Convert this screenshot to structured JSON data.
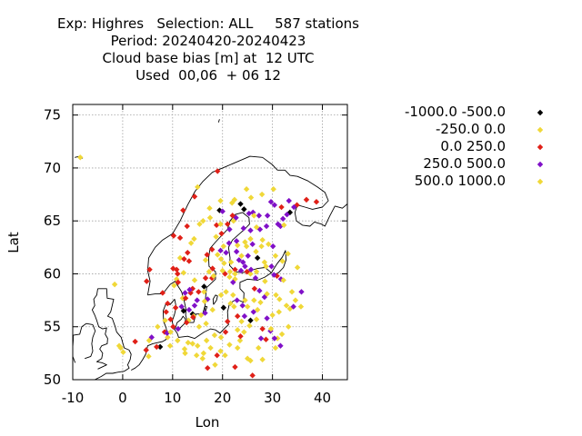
{
  "title_lines": [
    "Exp: Highres   Selection: ALL     587 stations",
    "Period: 20240420-20240423",
    "Cloud base bias [m] at  12 UTC",
    "Used  00,06  + 06 12"
  ],
  "chart_data": {
    "type": "scatter",
    "xlabel": "Lon",
    "ylabel": "Lat",
    "xlim": [
      -10,
      45
    ],
    "ylim": [
      50,
      76
    ],
    "xticks": [
      "-10",
      "0",
      "10",
      "20",
      "30",
      "40"
    ],
    "yticks": [
      "50",
      "55",
      "60",
      "65",
      "70",
      "75"
    ],
    "grid": true,
    "legend_position": "right",
    "series": [
      {
        "name": "-1000.0 -500.0",
        "color": "#000000",
        "points": [
          [
            12.2,
            56.5
          ],
          [
            19.4,
            66.0
          ],
          [
            20.2,
            56.8
          ],
          [
            23.6,
            66.6
          ],
          [
            24.3,
            66.1
          ],
          [
            25.6,
            55.6
          ],
          [
            33.5,
            65.8
          ],
          [
            7.5,
            53.1
          ],
          [
            16.3,
            58.8
          ],
          [
            14.0,
            56.2
          ],
          [
            27.0,
            61.5
          ]
        ]
      },
      {
        "name": "-250.0 0.0",
        "color": "#f0d838",
        "points": [
          [
            -8.5,
            71.0
          ],
          [
            -1.6,
            59.0
          ],
          [
            -0.4,
            53.0
          ],
          [
            0.1,
            52.6
          ],
          [
            5.2,
            52.2
          ],
          [
            7.0,
            55.0
          ],
          [
            9.0,
            54.0
          ],
          [
            9.5,
            53.2
          ],
          [
            11.0,
            53.7
          ],
          [
            12.5,
            52.5
          ],
          [
            13.1,
            53.5
          ],
          [
            14.0,
            53.4
          ],
          [
            15.0,
            53.2
          ],
          [
            16.0,
            52.0
          ],
          [
            17.6,
            53.0
          ],
          [
            18.5,
            51.4
          ],
          [
            20.5,
            52.3
          ],
          [
            19.7,
            54.0
          ],
          [
            16.7,
            55.3
          ],
          [
            18.0,
            56.6
          ],
          [
            19.7,
            58.0
          ],
          [
            20.7,
            58.3
          ],
          [
            20.3,
            61.0
          ],
          [
            21.5,
            60.2
          ],
          [
            22.5,
            59.5
          ],
          [
            21.4,
            59.7
          ],
          [
            22.2,
            65.0
          ],
          [
            23.0,
            62.7
          ],
          [
            24.5,
            63.0
          ],
          [
            25.6,
            60.0
          ],
          [
            26.8,
            60.2
          ],
          [
            28.7,
            60.7
          ],
          [
            25.0,
            56.9
          ],
          [
            26.3,
            57.5
          ],
          [
            27.0,
            56.6
          ],
          [
            28.5,
            59.3
          ],
          [
            30.7,
            58.0
          ],
          [
            31.4,
            57.6
          ],
          [
            30.0,
            56.1
          ],
          [
            31.0,
            53.9
          ],
          [
            33.9,
            58.3
          ],
          [
            34.6,
            57.5
          ],
          [
            33.5,
            56.7
          ],
          [
            31.9,
            54.3
          ],
          [
            35.0,
            60.6
          ],
          [
            33.1,
            61.9
          ],
          [
            24.8,
            68.0
          ],
          [
            27.9,
            67.5
          ],
          [
            19.6,
            66.9
          ],
          [
            14.3,
            63.3
          ],
          [
            16.1,
            65.0
          ],
          [
            15.4,
            64.7
          ],
          [
            13.7,
            62.9
          ],
          [
            16.6,
            61.3
          ],
          [
            17.3,
            60.2
          ],
          [
            14.4,
            59.4
          ],
          [
            12.2,
            60.1
          ],
          [
            11.5,
            61.5
          ],
          [
            10.8,
            59.5
          ],
          [
            10.3,
            58.9
          ],
          [
            12.0,
            57.7
          ],
          [
            13.2,
            55.6
          ],
          [
            15.3,
            55.0
          ],
          [
            14.2,
            56.0
          ],
          [
            25.4,
            55.1
          ],
          [
            24.3,
            54.5
          ],
          [
            23.5,
            53.7
          ],
          [
            27.2,
            53.0
          ],
          [
            25.6,
            51.8
          ],
          [
            24.5,
            57.5
          ],
          [
            28.0,
            63.2
          ],
          [
            32.0,
            61.2
          ],
          [
            22.3,
            56.9
          ],
          [
            19.0,
            61.8
          ]
        ]
      },
      {
        "name": "0.0 250.0",
        "color": "#e02018",
        "points": [
          [
            2.5,
            53.6
          ],
          [
            4.7,
            52.8
          ],
          [
            4.8,
            59.3
          ],
          [
            5.4,
            60.4
          ],
          [
            8.0,
            58.2
          ],
          [
            8.7,
            56.4
          ],
          [
            9.6,
            55.7
          ],
          [
            10.1,
            55.0
          ],
          [
            10.2,
            63.6
          ],
          [
            12.9,
            64.5
          ],
          [
            14.4,
            67.3
          ],
          [
            12.1,
            66.0
          ],
          [
            13.0,
            62.0
          ],
          [
            11.5,
            63.4
          ],
          [
            13.3,
            61.2
          ],
          [
            12.3,
            61.4
          ],
          [
            10.8,
            60.4
          ],
          [
            10.1,
            60.5
          ],
          [
            11.0,
            60.0
          ],
          [
            11.1,
            59.2
          ],
          [
            12.6,
            57.7
          ],
          [
            14.0,
            58.6
          ],
          [
            15.2,
            58.3
          ],
          [
            16.6,
            59.6
          ],
          [
            17.9,
            59.6
          ],
          [
            18.0,
            60.5
          ],
          [
            16.9,
            61.8
          ],
          [
            17.9,
            62.3
          ],
          [
            19.8,
            63.8
          ],
          [
            18.8,
            64.6
          ],
          [
            21.0,
            64.7
          ],
          [
            22.0,
            65.5
          ],
          [
            19.0,
            69.7
          ],
          [
            20.5,
            60.0
          ],
          [
            22.5,
            60.4
          ],
          [
            24.9,
            60.2
          ],
          [
            23.0,
            56.0
          ],
          [
            21.0,
            55.5
          ],
          [
            20.6,
            54.5
          ],
          [
            17.0,
            51.1
          ],
          [
            18.9,
            52.3
          ],
          [
            22.5,
            51.2
          ],
          [
            23.6,
            54.1
          ],
          [
            26.0,
            50.4
          ],
          [
            28.0,
            54.8
          ],
          [
            28.7,
            53.8
          ],
          [
            30.9,
            59.8
          ],
          [
            26.4,
            58.6
          ],
          [
            34.9,
            66.5
          ],
          [
            36.8,
            67.0
          ],
          [
            38.8,
            66.8
          ],
          [
            31.8,
            66.3
          ],
          [
            14.1,
            55.9
          ],
          [
            12.8,
            55.4
          ],
          [
            8.4,
            54.5
          ],
          [
            10.6,
            56.8
          ],
          [
            9.0,
            57.2
          ],
          [
            6.8,
            53.1
          ],
          [
            13.6,
            58.2
          ]
        ]
      },
      {
        "name": "250.0 500.0",
        "color": "#8010c8",
        "points": [
          [
            5.8,
            54.0
          ],
          [
            8.9,
            54.4
          ],
          [
            11.1,
            54.8
          ],
          [
            12.5,
            58.2
          ],
          [
            13.4,
            58.5
          ],
          [
            14.9,
            57.5
          ],
          [
            17.0,
            57.6
          ],
          [
            16.5,
            56.3
          ],
          [
            14.4,
            57.0
          ],
          [
            13.3,
            56.6
          ],
          [
            11.8,
            56.9
          ],
          [
            22.9,
            57.5
          ],
          [
            24.0,
            57.0
          ],
          [
            22.1,
            59.2
          ],
          [
            23.3,
            61.3
          ],
          [
            24.1,
            61.1
          ],
          [
            25.7,
            60.4
          ],
          [
            26.6,
            59.6
          ],
          [
            27.4,
            58.4
          ],
          [
            28.4,
            57.8
          ],
          [
            30.3,
            59.9
          ],
          [
            31.7,
            59.5
          ],
          [
            29.8,
            60.7
          ],
          [
            24.5,
            60.7
          ],
          [
            23.7,
            60.3
          ],
          [
            22.8,
            62.1
          ],
          [
            24.2,
            64.3
          ],
          [
            25.6,
            64.1
          ],
          [
            26.0,
            62.8
          ],
          [
            27.5,
            64.2
          ],
          [
            28.8,
            64.5
          ],
          [
            30.1,
            62.6
          ],
          [
            31.1,
            64.7
          ],
          [
            32.1,
            65.2
          ],
          [
            32.9,
            65.6
          ],
          [
            30.4,
            66.5
          ],
          [
            29.7,
            66.8
          ],
          [
            31.6,
            64.5
          ],
          [
            33.3,
            66.9
          ],
          [
            34.3,
            66.3
          ],
          [
            29.0,
            65.5
          ],
          [
            27.3,
            65.5
          ],
          [
            26.1,
            65.8
          ],
          [
            25.3,
            65.7
          ],
          [
            22.7,
            65.3
          ],
          [
            21.4,
            64.2
          ],
          [
            20.0,
            65.9
          ],
          [
            21.3,
            62.9
          ],
          [
            22.8,
            63.1
          ],
          [
            19.6,
            62.2
          ],
          [
            20.7,
            62.0
          ],
          [
            25.1,
            61.7
          ],
          [
            28.9,
            55.8
          ],
          [
            29.6,
            54.6
          ],
          [
            30.4,
            53.9
          ],
          [
            31.6,
            53.2
          ],
          [
            34.2,
            56.9
          ],
          [
            35.8,
            58.3
          ],
          [
            24.4,
            56.0
          ],
          [
            26.2,
            56.4
          ],
          [
            27.7,
            53.9
          ]
        ]
      },
      {
        "name": "500.0 1000.0",
        "color": "#f0d838",
        "points": [
          [
            -0.7,
            53.2
          ],
          [
            5.3,
            53.7
          ],
          [
            8.5,
            55.6
          ],
          [
            9.6,
            54.5
          ],
          [
            12.4,
            52.9
          ],
          [
            15.7,
            56.1
          ],
          [
            16.4,
            57.4
          ],
          [
            16.3,
            58.3
          ],
          [
            18.2,
            59.8
          ],
          [
            20.0,
            60.3
          ],
          [
            19.7,
            61.4
          ],
          [
            21.7,
            61.1
          ],
          [
            22.5,
            60.0
          ],
          [
            23.8,
            61.7
          ],
          [
            24.8,
            62.6
          ],
          [
            25.6,
            63.3
          ],
          [
            26.7,
            62.1
          ],
          [
            27.8,
            62.6
          ],
          [
            28.4,
            61.1
          ],
          [
            29.2,
            62.8
          ],
          [
            30.6,
            61.7
          ],
          [
            32.3,
            64.6
          ],
          [
            30.2,
            68.0
          ],
          [
            26.8,
            64.4
          ],
          [
            26.3,
            65.5
          ],
          [
            25.7,
            67.2
          ],
          [
            22.4,
            67.0
          ],
          [
            21.9,
            66.7
          ],
          [
            17.5,
            65.3
          ],
          [
            18.7,
            63.5
          ],
          [
            19.6,
            64.7
          ],
          [
            17.4,
            66.2
          ],
          [
            15.0,
            68.2
          ],
          [
            20.2,
            62.6
          ],
          [
            22.1,
            58.0
          ],
          [
            23.0,
            54.7
          ],
          [
            23.0,
            53.0
          ],
          [
            21.4,
            53.3
          ],
          [
            19.6,
            52.7
          ],
          [
            25.0,
            52.0
          ],
          [
            29.7,
            54.8
          ],
          [
            31.3,
            56.4
          ],
          [
            33.2,
            55.0
          ],
          [
            30.6,
            53.0
          ],
          [
            28.0,
            51.9
          ],
          [
            26.8,
            55.7
          ],
          [
            27.6,
            57.3
          ],
          [
            28.9,
            58.1
          ],
          [
            32.8,
            57.0
          ],
          [
            32.2,
            59.4
          ],
          [
            35.7,
            56.9
          ],
          [
            21.6,
            57.2
          ],
          [
            23.8,
            55.5
          ],
          [
            18.4,
            54.2
          ],
          [
            16.8,
            53.7
          ],
          [
            16.2,
            52.5
          ],
          [
            14.8,
            52.3
          ]
        ]
      }
    ]
  }
}
